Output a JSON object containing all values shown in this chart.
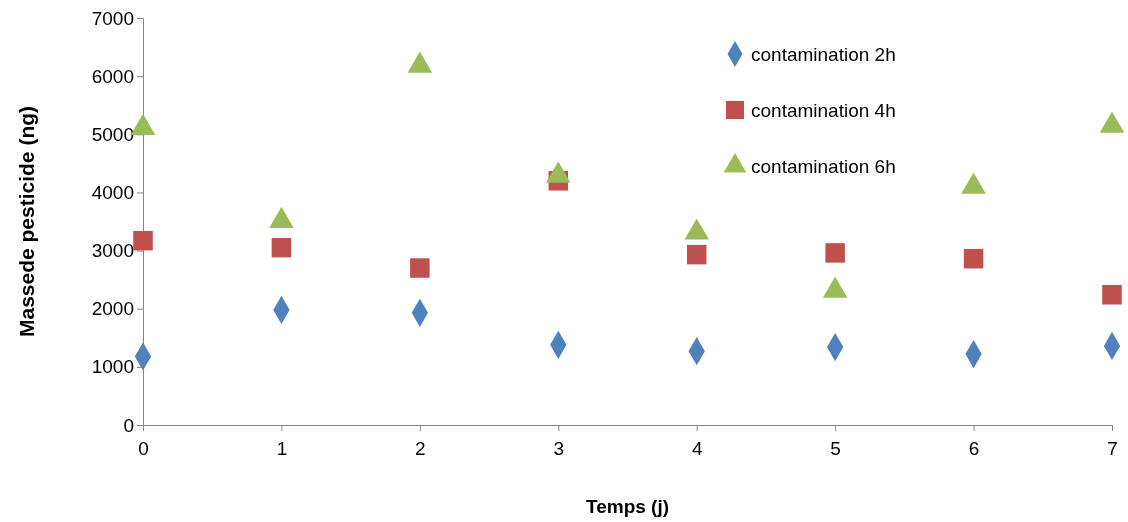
{
  "chart_data": {
    "type": "scatter",
    "xlabel": "Temps (j)",
    "ylabel": "Massede pesticide (ng)",
    "x": [
      0,
      1,
      2,
      3,
      4,
      5,
      6,
      7
    ],
    "xlim": [
      0,
      7
    ],
    "xticks": [
      0,
      1,
      2,
      3,
      4,
      5,
      6,
      7
    ],
    "ylim": [
      0,
      7000
    ],
    "yticks": [
      0,
      1000,
      2000,
      3000,
      4000,
      5000,
      6000,
      7000
    ],
    "grid": false,
    "legend": "top right",
    "series": [
      {
        "name": "contamination 2h",
        "color": "#4f81bd",
        "marker": "diamond",
        "values": [
          1180,
          1980,
          1930,
          1380,
          1270,
          1340,
          1220,
          1360
        ]
      },
      {
        "name": "contamination 4h",
        "color": "#c0504d",
        "marker": "square",
        "values": [
          3170,
          3050,
          2700,
          4200,
          2930,
          2960,
          2860,
          2240
        ]
      },
      {
        "name": "contamination 6h",
        "color": "#9bbb59",
        "marker": "triangle",
        "values": [
          5110,
          3510,
          6180,
          4290,
          3310,
          2310,
          4100,
          5150
        ]
      }
    ]
  }
}
